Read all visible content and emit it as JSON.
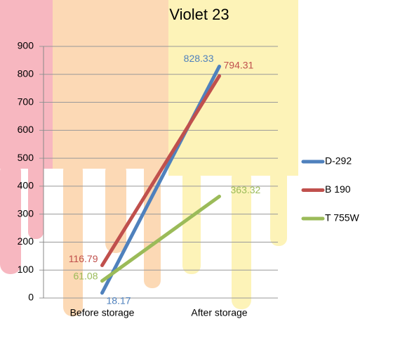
{
  "chart_data": {
    "type": "line",
    "title": "Violet 23",
    "categories": [
      "Before storage",
      "After storage"
    ],
    "series": [
      {
        "name": "D-292",
        "color": "#4f81bd",
        "values": [
          18.17,
          828.33
        ]
      },
      {
        "name": "B 190",
        "color": "#c0504d",
        "values": [
          116.79,
          794.31
        ]
      },
      {
        "name": "T 755W",
        "color": "#9bbb59",
        "values": [
          61.08,
          363.32
        ]
      }
    ],
    "ylim": [
      0,
      900
    ],
    "yticks": [
      0,
      100,
      200,
      300,
      400,
      500,
      600,
      700,
      800,
      900
    ],
    "grid": true,
    "legend": "right"
  }
}
